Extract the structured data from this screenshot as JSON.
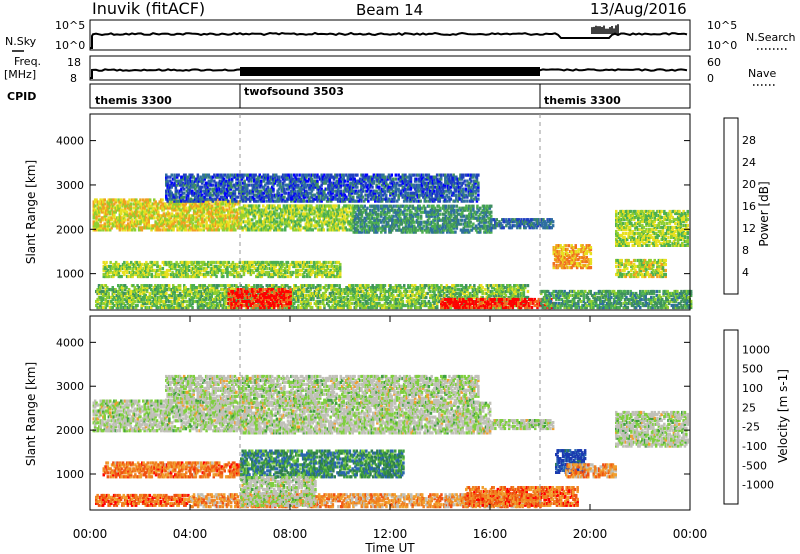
{
  "header": {
    "station": "Inuvik (fitACF)",
    "beam": "Beam 14",
    "date": "13/Aug/2016"
  },
  "top_panels": {
    "nsky_label": "N.Sky",
    "nsky_ticks": [
      "10^5",
      "10^0"
    ],
    "nsearch_label": "N.Search",
    "nsearch_ticks": [
      "10^5",
      "10^0"
    ],
    "freq_label_1": "Freq.",
    "freq_label_2": "[MHz]",
    "freq_ticks": [
      "18",
      "8"
    ],
    "nave_label": "Nave",
    "nave_ticks": [
      "60",
      "0"
    ],
    "cpid_label": "CPID",
    "cpid_segments": [
      {
        "label": "themis 3300",
        "start": 0,
        "end": 6
      },
      {
        "label": "twofsound 3503",
        "start": 6,
        "end": 18
      },
      {
        "label": "themis 3300",
        "start": 18,
        "end": 24
      }
    ]
  },
  "chart_data": [
    {
      "type": "heatmap",
      "panel": "power",
      "ylabel": "Slant Range [km]",
      "xlabel": "",
      "yticks": [
        1000,
        2000,
        3000,
        4000
      ],
      "ylim": [
        180,
        4600
      ],
      "xlim": [
        0,
        24
      ],
      "colorbar": {
        "label": "Power [dB]",
        "ticks": [
          "4",
          "8",
          "12",
          "16",
          "20",
          "24",
          "28"
        ],
        "colors": [
          "#0000ff",
          "#2040c0",
          "#2f6fa0",
          "#3f8f5f",
          "#4caf50",
          "#8fcf30",
          "#e8e020",
          "#f0a020",
          "#f07020",
          "#ff0000"
        ]
      },
      "bands": [
        {
          "t0": 0.1,
          "t1": 6.0,
          "r_lo": 1950,
          "r_hi": 2650,
          "level": 0.65
        },
        {
          "t0": 6.0,
          "t1": 10.5,
          "r_lo": 1950,
          "r_hi": 2500,
          "level": 0.55
        },
        {
          "t0": 10.5,
          "t1": 16.0,
          "r_lo": 1900,
          "r_hi": 2500,
          "level": 0.35
        },
        {
          "t0": 16.0,
          "t1": 18.5,
          "r_lo": 2000,
          "r_hi": 2200,
          "level": 0.25
        },
        {
          "t0": 21.0,
          "t1": 23.9,
          "r_lo": 1600,
          "r_hi": 2400,
          "level": 0.55
        },
        {
          "t0": 0.5,
          "t1": 10.0,
          "r_lo": 900,
          "r_hi": 1250,
          "level": 0.55
        },
        {
          "t0": 0.2,
          "t1": 17.5,
          "r_lo": 200,
          "r_hi": 700,
          "level": 0.5
        },
        {
          "t0": 5.5,
          "t1": 8.0,
          "r_lo": 200,
          "r_hi": 650,
          "level": 0.95
        },
        {
          "t0": 14.0,
          "t1": 18.5,
          "r_lo": 200,
          "r_hi": 420,
          "level": 0.95
        },
        {
          "t0": 18.5,
          "t1": 20.0,
          "r_lo": 1100,
          "r_hi": 1600,
          "level": 0.75
        },
        {
          "t0": 21.0,
          "t1": 23.0,
          "r_lo": 900,
          "r_hi": 1300,
          "level": 0.6
        },
        {
          "t0": 18.0,
          "t1": 24.0,
          "r_lo": 200,
          "r_hi": 600,
          "level": 0.4
        },
        {
          "t0": 3.0,
          "t1": 15.5,
          "r_lo": 2600,
          "r_hi": 3200,
          "level": 0.2
        }
      ]
    },
    {
      "type": "heatmap",
      "panel": "velocity",
      "ylabel": "Slant Range [km]",
      "xlabel": "Time UT",
      "xticks": [
        "00:00",
        "04:00",
        "08:00",
        "12:00",
        "16:00",
        "20:00",
        "00:00"
      ],
      "yticks": [
        1000,
        2000,
        3000,
        4000
      ],
      "ylim": [
        180,
        4600
      ],
      "xlim": [
        0,
        24
      ],
      "colorbar": {
        "label": "Velocity [m s-1]",
        "ticks": [
          "1000",
          "500",
          "100",
          "25",
          "-25",
          "-100",
          "-500",
          "-1000"
        ],
        "colors": [
          "#1a3ab0",
          "#2a66b0",
          "#2e7d4f",
          "#3fa03f",
          "#7fcf3f",
          "#c0c0b8",
          "#c0c0b8",
          "#f0a030",
          "#f08020",
          "#f05010",
          "#ff0000"
        ]
      },
      "bands": [
        {
          "t0": 0.1,
          "t1": 6.0,
          "r_lo": 1950,
          "r_hi": 2650,
          "level": 0.5
        },
        {
          "t0": 6.0,
          "t1": 16.0,
          "r_lo": 1900,
          "r_hi": 2600,
          "level": 0.5
        },
        {
          "t0": 16.0,
          "t1": 18.5,
          "r_lo": 2000,
          "r_hi": 2200,
          "level": 0.5
        },
        {
          "t0": 21.0,
          "t1": 23.9,
          "r_lo": 1600,
          "r_hi": 2400,
          "level": 0.5
        },
        {
          "t0": 0.5,
          "t1": 6.0,
          "r_lo": 900,
          "r_hi": 1250,
          "level": 0.78
        },
        {
          "t0": 6.0,
          "t1": 12.5,
          "r_lo": 900,
          "r_hi": 1500,
          "level": 0.25
        },
        {
          "t0": 0.2,
          "t1": 4.0,
          "r_lo": 250,
          "r_hi": 500,
          "level": 0.8
        },
        {
          "t0": 4.0,
          "t1": 18.0,
          "r_lo": 220,
          "r_hi": 500,
          "level": 0.72
        },
        {
          "t0": 15.0,
          "t1": 19.5,
          "r_lo": 250,
          "r_hi": 700,
          "level": 0.8
        },
        {
          "t0": 18.6,
          "t1": 19.8,
          "r_lo": 1000,
          "r_hi": 1500,
          "level": 0.05
        },
        {
          "t0": 19.0,
          "t1": 21.0,
          "r_lo": 900,
          "r_hi": 1200,
          "level": 0.72
        },
        {
          "t0": 6.0,
          "t1": 9.0,
          "r_lo": 250,
          "r_hi": 900,
          "level": 0.5
        },
        {
          "t0": 3.0,
          "t1": 15.5,
          "r_lo": 2600,
          "r_hi": 3200,
          "level": 0.5
        }
      ]
    }
  ],
  "dashed_line_times": [
    6,
    18
  ]
}
